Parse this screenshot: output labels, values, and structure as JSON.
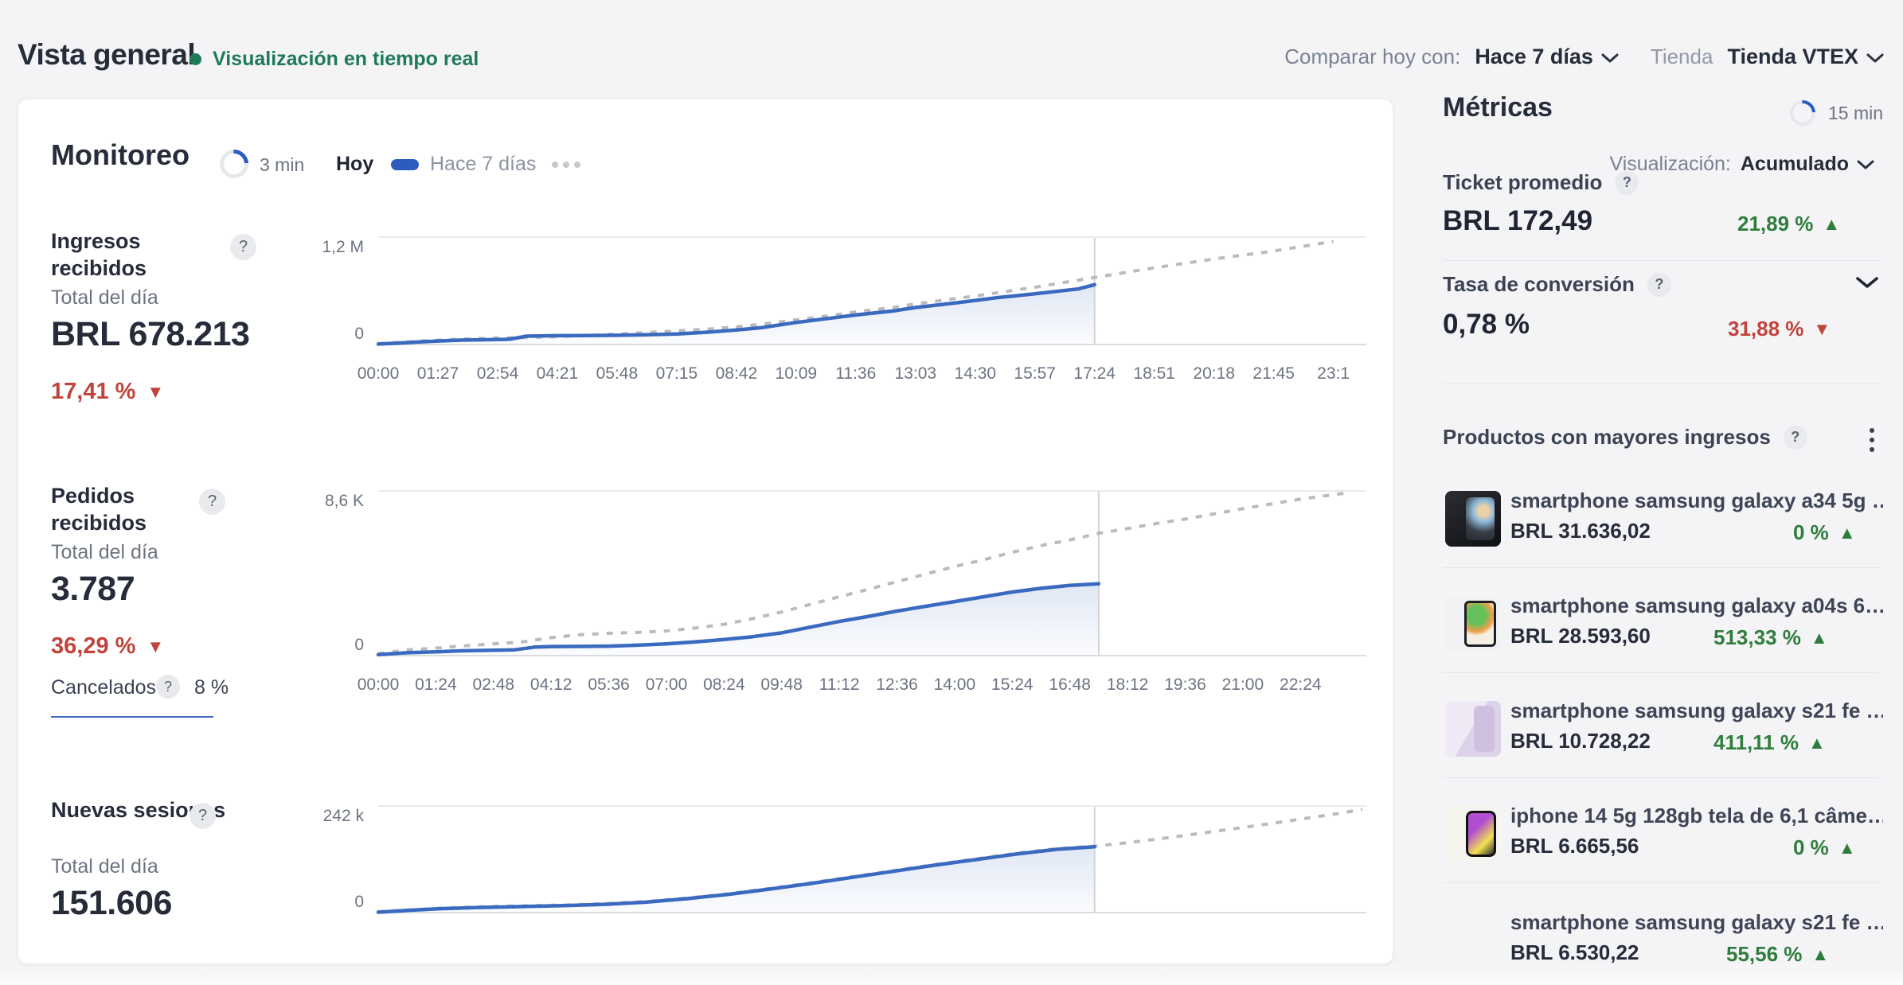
{
  "topbar": {
    "title": "Vista general",
    "live_label": "Visualización en tiempo real",
    "compare_label": "Comparar hoy con:",
    "compare_value": "Hace 7 días",
    "store_label": "Tienda",
    "store_value": "Tienda VTEX"
  },
  "monitoring": {
    "title": "Monitoreo",
    "refresh_interval": "3 min",
    "legend_today": "Hoy",
    "legend_compare": "Hace 7 días",
    "view_label": "Visualización:",
    "view_value": "Acumulado",
    "rows": [
      {
        "title": "Ingresos recibidos",
        "subtitle": "Total del día",
        "value": "BRL 678.213",
        "delta": "17,41 %",
        "delta_direction": "down"
      },
      {
        "title": "Pedidos recibidos",
        "subtitle": "Total del día",
        "value": "3.787",
        "delta": "36,29 %",
        "delta_direction": "down",
        "cancelled_label": "Cancelados",
        "cancelled_value": "8 %"
      },
      {
        "title": "Nuevas sesiones",
        "subtitle": "Total del día",
        "value": "151.606"
      }
    ]
  },
  "metrics": {
    "title": "Métricas",
    "refresh_interval": "15 min",
    "ticket": {
      "label": "Ticket promedio",
      "value": "BRL 172,49",
      "delta": "21,89 %",
      "delta_direction": "up"
    },
    "conversion": {
      "label": "Tasa de conversión",
      "value": "0,78 %",
      "delta": "31,88 %",
      "delta_direction": "down"
    },
    "products": {
      "title": "Productos con mayores ingresos",
      "items": [
        {
          "name": "smartphone samsung galaxy a34 5g …",
          "revenue": "BRL 31.636,02",
          "delta": "0 %",
          "delta_direction": "up"
        },
        {
          "name": "smartphone samsung galaxy a04s 6…",
          "revenue": "BRL 28.593,60",
          "delta": "513,33 %",
          "delta_direction": "up"
        },
        {
          "name": "smartphone samsung galaxy s21 fe …",
          "revenue": "BRL 10.728,22",
          "delta": "411,11 %",
          "delta_direction": "up"
        },
        {
          "name": "iphone 14 5g 128gb tela de 6,1 câme…",
          "revenue": "BRL 6.665,56",
          "delta": "0 %",
          "delta_direction": "up"
        },
        {
          "name": "smartphone samsung galaxy s21 fe …",
          "revenue": "BRL 6.530,22",
          "delta": "55,56 %",
          "delta_direction": "up"
        }
      ]
    }
  },
  "colors": {
    "accent_blue": "#3a69c0",
    "compare_gray": "#b9bbc0",
    "positive_green": "#2f7d3c",
    "negative_red": "#c0443c",
    "live_green": "#1e7a57"
  },
  "chart_data": [
    {
      "type": "line",
      "title": "Ingresos recibidos (acumulado)",
      "ylabel_top": "1,2 M",
      "ylabel_bottom": "0",
      "ylim": [
        0,
        1200000
      ],
      "now_hour": 17.4,
      "legend": [
        "Hoy",
        "Hace 7 días"
      ],
      "xticks": [
        [
          "00:00",
          0
        ],
        [
          "01:27",
          1.45
        ],
        [
          "02:54",
          2.9
        ],
        [
          "04:21",
          4.35
        ],
        [
          "05:48",
          5.8
        ],
        [
          "07:15",
          7.25
        ],
        [
          "08:42",
          8.7
        ],
        [
          "10:09",
          10.15
        ],
        [
          "11:36",
          11.6
        ],
        [
          "13:03",
          13.05
        ],
        [
          "14:30",
          14.5
        ],
        [
          "15:57",
          15.95
        ],
        [
          "17:24",
          17.4
        ],
        [
          "18:51",
          18.85
        ],
        [
          "20:18",
          20.3
        ],
        [
          "21:45",
          21.75
        ],
        [
          "23:1",
          23.2
        ]
      ],
      "series": [
        {
          "name": "Hoy",
          "style": "solid",
          "points": [
            [
              0,
              5000
            ],
            [
              0.5,
              15000
            ],
            [
              1,
              30000
            ],
            [
              1.45,
              40000
            ],
            [
              2,
              50000
            ],
            [
              2.9,
              56000
            ],
            [
              3.2,
              60000
            ],
            [
              3.6,
              95000
            ],
            [
              4.35,
              100000
            ],
            [
              5,
              101000
            ],
            [
              5.8,
              105000
            ],
            [
              6.5,
              110000
            ],
            [
              7.25,
              120000
            ],
            [
              8,
              140000
            ],
            [
              8.7,
              165000
            ],
            [
              9.3,
              190000
            ],
            [
              10.15,
              250000
            ],
            [
              11,
              300000
            ],
            [
              11.6,
              335000
            ],
            [
              12.5,
              380000
            ],
            [
              13.05,
              420000
            ],
            [
              14,
              470000
            ],
            [
              14.5,
              500000
            ],
            [
              15,
              530000
            ],
            [
              15.95,
              575000
            ],
            [
              17,
              630000
            ],
            [
              17.4,
              678213
            ]
          ]
        },
        {
          "name": "Hace 7 días",
          "style": "dashed",
          "points": [
            [
              0,
              10000
            ],
            [
              1,
              40000
            ],
            [
              2,
              60000
            ],
            [
              2.9,
              75000
            ],
            [
              3.6,
              80000
            ],
            [
              4.35,
              88000
            ],
            [
              5,
              100000
            ],
            [
              5.8,
              118000
            ],
            [
              6.5,
              135000
            ],
            [
              7.25,
              155000
            ],
            [
              8,
              175000
            ],
            [
              8.7,
              200000
            ],
            [
              9.3,
              230000
            ],
            [
              10.15,
              280000
            ],
            [
              11,
              330000
            ],
            [
              11.6,
              370000
            ],
            [
              12.5,
              420000
            ],
            [
              13.05,
              460000
            ],
            [
              14,
              520000
            ],
            [
              14.5,
              550000
            ],
            [
              15.95,
              650000
            ],
            [
              17,
              730000
            ],
            [
              17.4,
              760000
            ],
            [
              18.85,
              870000
            ],
            [
              20.3,
              970000
            ],
            [
              21.75,
              1060000
            ],
            [
              23.2,
              1170000
            ]
          ]
        }
      ]
    },
    {
      "type": "line",
      "title": "Pedidos recibidos (acumulado)",
      "ylabel_top": "8,6 K",
      "ylabel_bottom": "0",
      "ylim": [
        0,
        8600
      ],
      "now_hour": 17.5,
      "legend": [
        "Hoy",
        "Hace 7 días"
      ],
      "xticks": [
        [
          "00:00",
          0
        ],
        [
          "01:24",
          1.4
        ],
        [
          "02:48",
          2.8
        ],
        [
          "04:12",
          4.2
        ],
        [
          "05:36",
          5.6
        ],
        [
          "07:00",
          7
        ],
        [
          "08:24",
          8.4
        ],
        [
          "09:48",
          9.8
        ],
        [
          "11:12",
          11.2
        ],
        [
          "12:36",
          12.6
        ],
        [
          "14:00",
          14
        ],
        [
          "15:24",
          15.4
        ],
        [
          "16:48",
          16.8
        ],
        [
          "18:12",
          18.2
        ],
        [
          "19:36",
          19.6
        ],
        [
          "21:00",
          21
        ],
        [
          "22:24",
          22.4
        ]
      ],
      "series": [
        {
          "name": "Hoy",
          "style": "solid",
          "points": [
            [
              0,
              50
            ],
            [
              0.7,
              150
            ],
            [
              1.4,
              200
            ],
            [
              2,
              250
            ],
            [
              2.8,
              280
            ],
            [
              3.3,
              300
            ],
            [
              3.8,
              450
            ],
            [
              4.2,
              480
            ],
            [
              5,
              485
            ],
            [
              5.6,
              500
            ],
            [
              6.3,
              550
            ],
            [
              7,
              620
            ],
            [
              7.7,
              720
            ],
            [
              8.4,
              850
            ],
            [
              9.1,
              1000
            ],
            [
              9.8,
              1200
            ],
            [
              10.5,
              1500
            ],
            [
              11.2,
              1800
            ],
            [
              12,
              2100
            ],
            [
              12.6,
              2350
            ],
            [
              13.3,
              2600
            ],
            [
              14,
              2850
            ],
            [
              14.7,
              3100
            ],
            [
              15.4,
              3350
            ],
            [
              16.1,
              3550
            ],
            [
              16.8,
              3700
            ],
            [
              17.5,
              3787
            ]
          ]
        },
        {
          "name": "Hace 7 días",
          "style": "dashed",
          "points": [
            [
              0,
              100
            ],
            [
              0.7,
              300
            ],
            [
              1.4,
              400
            ],
            [
              2,
              500
            ],
            [
              2.8,
              620
            ],
            [
              3.5,
              720
            ],
            [
              4.2,
              950
            ],
            [
              4.9,
              1100
            ],
            [
              5.6,
              1180
            ],
            [
              6.3,
              1220
            ],
            [
              7,
              1300
            ],
            [
              7.7,
              1450
            ],
            [
              8.4,
              1650
            ],
            [
              9.1,
              1950
            ],
            [
              9.8,
              2300
            ],
            [
              10.5,
              2700
            ],
            [
              11.2,
              3100
            ],
            [
              12,
              3550
            ],
            [
              12.6,
              3900
            ],
            [
              13.3,
              4300
            ],
            [
              14,
              4700
            ],
            [
              14.7,
              5050
            ],
            [
              15.4,
              5450
            ],
            [
              16.1,
              5800
            ],
            [
              16.8,
              6100
            ],
            [
              17.5,
              6450
            ],
            [
              18.2,
              6700
            ],
            [
              19,
              7000
            ],
            [
              19.6,
              7200
            ],
            [
              21,
              7750
            ],
            [
              22.4,
              8250
            ],
            [
              23.6,
              8600
            ]
          ]
        }
      ]
    },
    {
      "type": "line",
      "title": "Nuevas sesiones (acumulado)",
      "ylabel_top": "242 k",
      "ylabel_bottom": "0",
      "ylim": [
        0,
        242000
      ],
      "now_hour": 17.4,
      "legend": [
        "Hoy",
        "Hace 7 días"
      ],
      "xticks": [],
      "series": [
        {
          "name": "Hoy",
          "style": "solid",
          "points": [
            [
              0,
              1000
            ],
            [
              0.7,
              5000
            ],
            [
              1.5,
              9000
            ],
            [
              2.5,
              12000
            ],
            [
              3.5,
              14000
            ],
            [
              4.5,
              16000
            ],
            [
              5.5,
              19000
            ],
            [
              6.5,
              24000
            ],
            [
              7.5,
              32000
            ],
            [
              8.5,
              42000
            ],
            [
              9.5,
              54000
            ],
            [
              10.5,
              67000
            ],
            [
              11.5,
              81000
            ],
            [
              12.5,
              95000
            ],
            [
              13.5,
              109000
            ],
            [
              14.5,
              122000
            ],
            [
              15.5,
              135000
            ],
            [
              16.5,
              146000
            ],
            [
              17.4,
              151606
            ]
          ]
        },
        {
          "name": "Hace 7 días",
          "style": "dashed",
          "points": [
            [
              0,
              2000
            ],
            [
              0.7,
              6000
            ],
            [
              1.5,
              10000
            ],
            [
              2.5,
              13500
            ],
            [
              3.5,
              15500
            ],
            [
              4.5,
              17500
            ],
            [
              5.5,
              20500
            ],
            [
              6.5,
              25500
            ],
            [
              7.5,
              33500
            ],
            [
              8.5,
              43500
            ],
            [
              9.5,
              55500
            ],
            [
              10.5,
              68500
            ],
            [
              11.5,
              82500
            ],
            [
              12.5,
              96500
            ],
            [
              13.5,
              110500
            ],
            [
              14.5,
              123500
            ],
            [
              15.5,
              136500
            ],
            [
              16.5,
              147500
            ],
            [
              17.4,
              153000
            ],
            [
              18.3,
              162000
            ],
            [
              19.3,
              174000
            ],
            [
              20.3,
              187000
            ],
            [
              21.3,
              200000
            ],
            [
              22.3,
              214000
            ],
            [
              23.3,
              228000
            ],
            [
              23.9,
              238000
            ]
          ]
        }
      ]
    }
  ]
}
